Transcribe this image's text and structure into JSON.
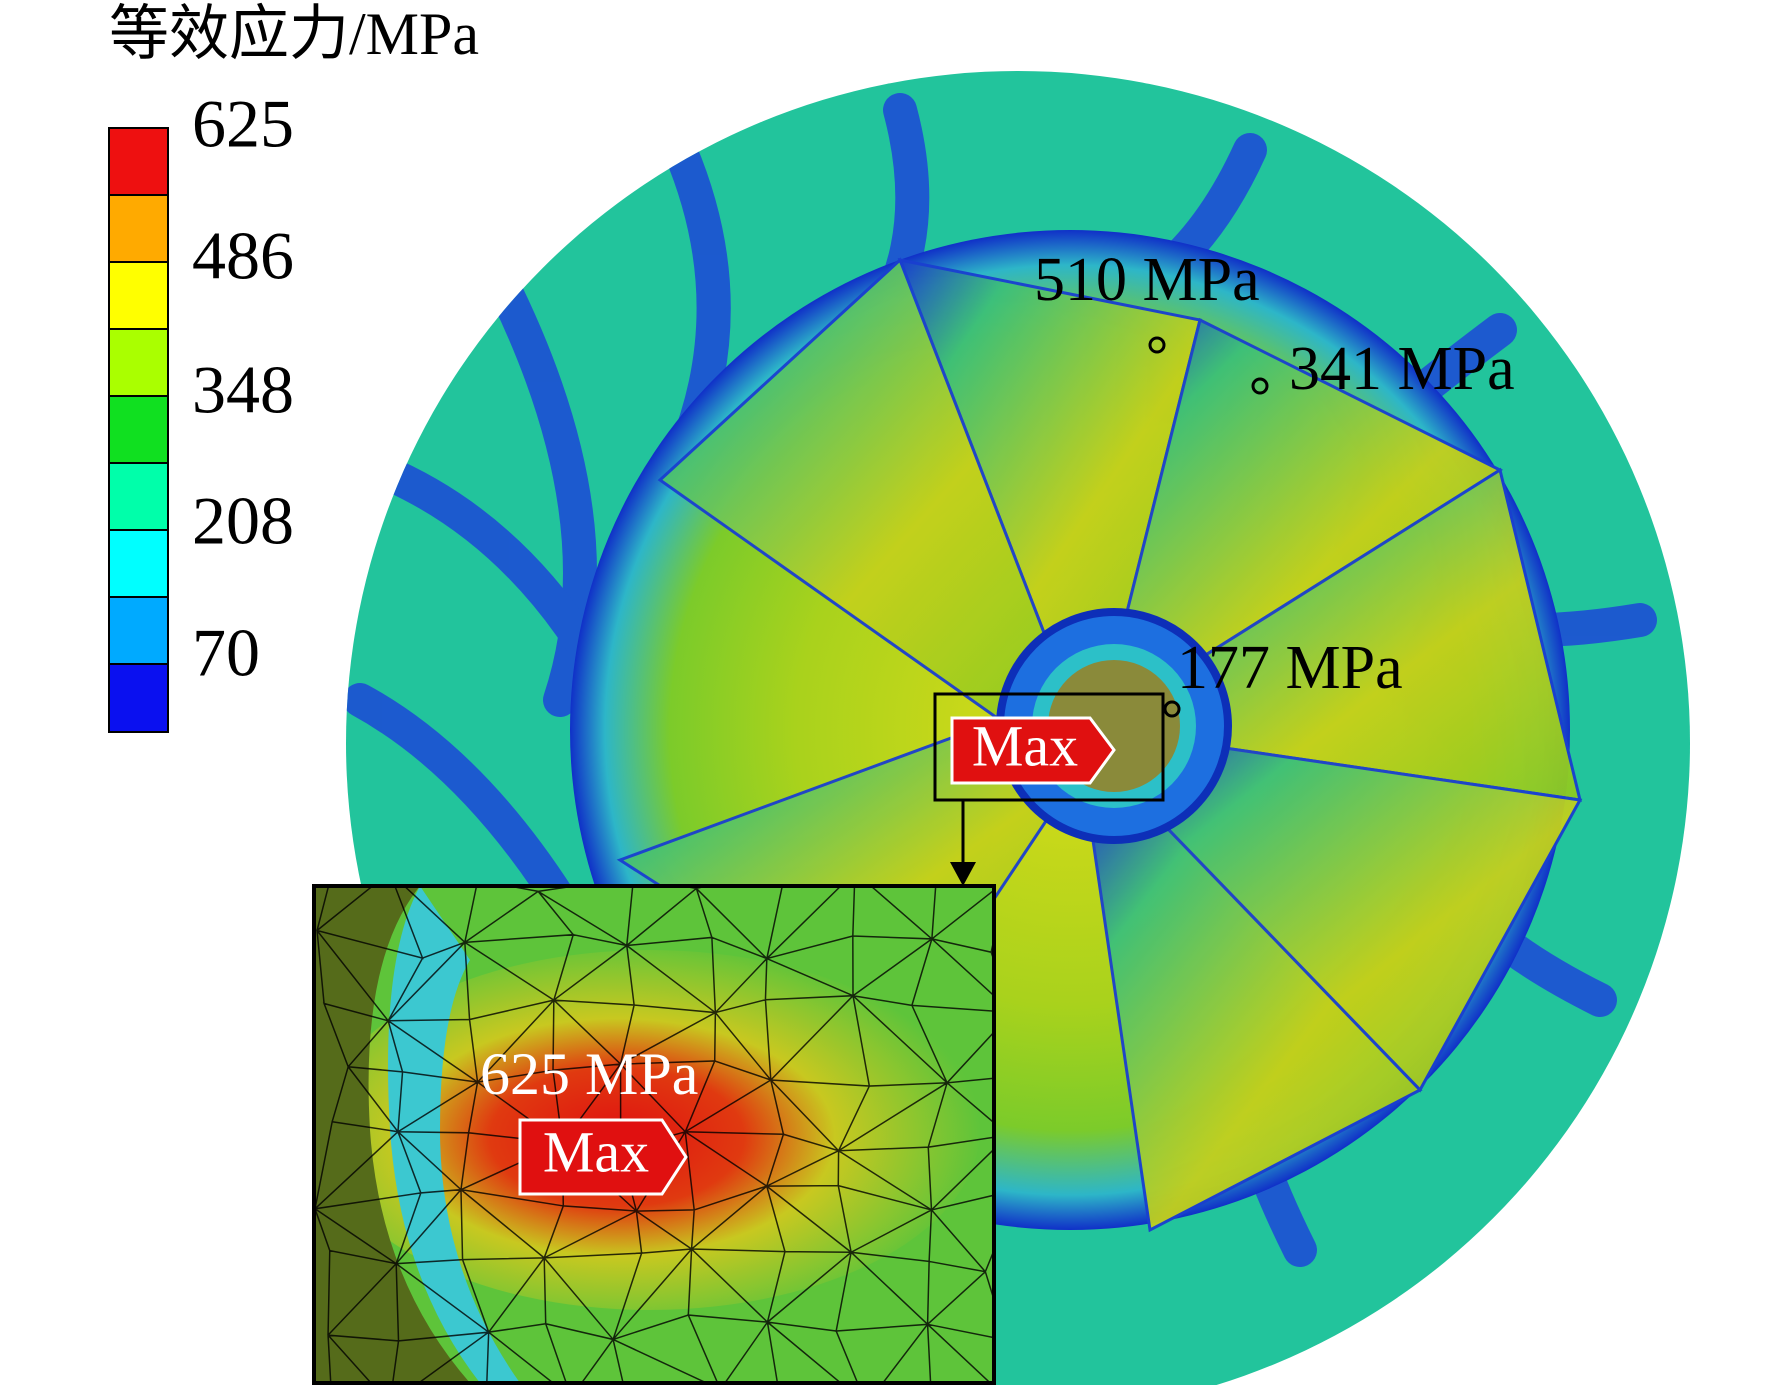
{
  "legend": {
    "title": "等效应力/MPa",
    "labels": [
      625,
      486,
      348,
      208,
      70
    ]
  },
  "annotations": {
    "point_1": "510 MPa",
    "point_2": "341 MPa",
    "point_3": "177 MPa",
    "max_marker": "Max"
  },
  "inset": {
    "value": "625 MPa",
    "max_marker": "Max"
  }
}
